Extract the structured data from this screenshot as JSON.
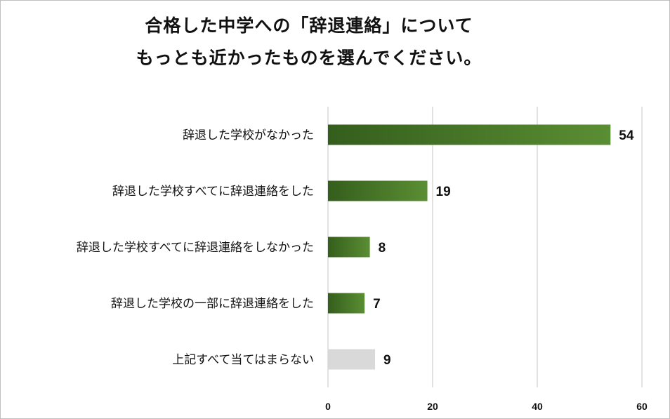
{
  "chart_data": {
    "type": "bar",
    "orientation": "horizontal",
    "title_lines": [
      "合格した中学への「辞退連絡」について",
      "もっとも近かったものを選んでください。"
    ],
    "categories": [
      "辞退した学校がなかった",
      "辞退した学校すべてに辞退連絡をした",
      "辞退した学校すべてに辞退連絡をしなかった",
      "辞退した学校の一部に辞退連絡をした",
      "上記すべて当てはまらない"
    ],
    "values": [
      54,
      19,
      8,
      7,
      9
    ],
    "bar_colors": [
      "#4e7f2a",
      "#4e7f2a",
      "#4e7f2a",
      "#4e7f2a",
      "#d9d9d9"
    ],
    "xlim": [
      0,
      60
    ],
    "xticks": [
      0,
      20,
      40,
      60
    ],
    "grid": true,
    "legend": "none"
  }
}
